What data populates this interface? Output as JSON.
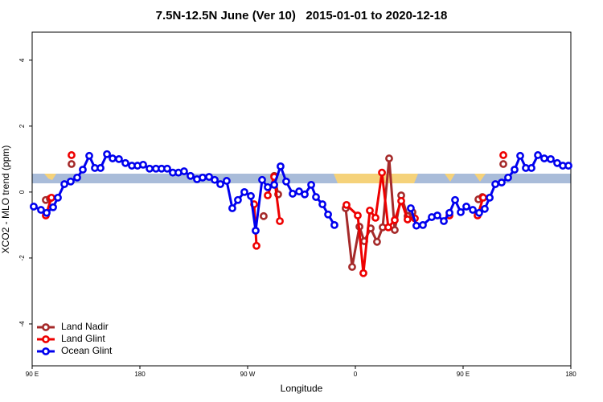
{
  "chart_data": {
    "type": "line",
    "title": "7.5N-12.5N June (Ver 10)   2015-01-01 to 2020-12-18",
    "xlabel": "Longitude",
    "ylabel": "XCO2 - MLO trend (ppm)",
    "xlim": [
      90,
      540
    ],
    "ylim": [
      -5.27,
      4.85
    ],
    "xticks": [
      {
        "value": 90,
        "label": "90 E"
      },
      {
        "value": 180,
        "label": "180"
      },
      {
        "value": 270,
        "label": "90 W"
      },
      {
        "value": 360,
        "label": "0"
      },
      {
        "value": 450,
        "label": "90 E"
      },
      {
        "value": 540,
        "label": "180"
      }
    ],
    "yticks": [
      -4,
      -2,
      0,
      2,
      4
    ],
    "legend": "bottom-left",
    "series": [
      {
        "name": "Land Nadir",
        "color": "#a52a2a",
        "x": [
          101.4,
          104.8,
          null,
          122.9,
          null,
          283.4,
          null,
          292.2,
          295.5,
          null,
          351.9,
          357.3,
          363.4,
          367.4,
          372.8,
          378.1,
          382.8,
          388.2,
          392.9,
          398.3,
          403.6,
          407.7,
          null,
          462.8,
          466.1,
          null,
          483.6
        ],
        "values": [
          -0.24,
          -0.2,
          null,
          0.85,
          null,
          -0.73,
          null,
          0.49,
          -0.07,
          null,
          -0.49,
          -2.27,
          -1.05,
          -1.49,
          -1.1,
          -1.51,
          -1.07,
          1.02,
          -1.15,
          -0.1,
          -0.73,
          -0.61,
          null,
          -0.22,
          -0.15,
          null,
          0.85
        ]
      },
      {
        "name": "Land Glint",
        "color": "#ee0000",
        "x": [
          101.4,
          106.1,
          null,
          122.9,
          null,
          275.4,
          277.4,
          null,
          286.8,
          292.2,
          296.9,
          null,
          352.6,
          362.0,
          366.7,
          372.1,
          376.8,
          382.2,
          387.5,
          392.9,
          398.3,
          403.6,
          409.7,
          null,
          438.6,
          null,
          462.1,
          466.8,
          null,
          483.6
        ],
        "values": [
          -0.71,
          -0.17,
          null,
          1.12,
          null,
          -0.37,
          -1.63,
          null,
          -0.1,
          0.46,
          -0.88,
          null,
          -0.39,
          -0.71,
          -2.46,
          -0.56,
          -0.78,
          0.59,
          -1.07,
          -0.85,
          -0.27,
          -0.83,
          -0.8,
          null,
          -0.71,
          null,
          -0.71,
          -0.17,
          null,
          1.12
        ]
      },
      {
        "name": "Ocean Glint",
        "color": "#0000ee",
        "x": [
          91.3,
          97.4,
          102.1,
          107.5,
          111.5,
          116.9,
          122.2,
          127.6,
          132.3,
          137.7,
          142.4,
          147.1,
          152.5,
          157.2,
          162.5,
          167.9,
          173.3,
          178.0,
          182.7,
          188.1,
          193.4,
          198.1,
          202.8,
          207.5,
          212.2,
          216.9,
          222.3,
          227.7,
          232.4,
          237.8,
          242.5,
          247.2,
          252.5,
          257.2,
          261.9,
          267.3,
          272.7,
          276.7,
          282.1,
          286.8,
          292.2,
          297.5,
          302.2,
          307.6,
          313.0,
          317.7,
          323.1,
          327.1,
          332.5,
          337.2,
          342.5,
          null,
          406.3,
          411.0,
          416.4,
          423.8,
          428.5,
          433.9,
          438.6,
          443.3,
          448.0,
          452.7,
          458.1,
          463.4,
          468.1,
          472.2,
          476.9,
          482.2,
          487.6,
          493.0,
          497.7,
          502.4,
          507.1,
          512.5,
          517.8,
          523.2,
          528.6,
          533.3,
          538.0
        ],
        "values": [
          -0.44,
          -0.54,
          -0.63,
          -0.46,
          -0.17,
          0.24,
          0.32,
          0.44,
          0.68,
          1.1,
          0.73,
          0.73,
          1.15,
          1.02,
          1.0,
          0.88,
          0.8,
          0.8,
          0.83,
          0.71,
          0.71,
          0.71,
          0.71,
          0.59,
          0.59,
          0.63,
          0.49,
          0.39,
          0.44,
          0.46,
          0.37,
          0.24,
          0.34,
          -0.49,
          -0.24,
          0,
          -0.12,
          -1.17,
          0.37,
          0.15,
          0.22,
          0.78,
          0.32,
          -0.05,
          0.02,
          -0.07,
          0.22,
          -0.15,
          -0.37,
          -0.68,
          -1.0,
          null,
          -0.49,
          -1.02,
          -1.0,
          -0.76,
          -0.71,
          -0.88,
          -0.63,
          -0.24,
          -0.61,
          -0.44,
          -0.54,
          -0.63,
          -0.51,
          -0.17,
          0.24,
          0.29,
          0.44,
          0.68,
          1.1,
          0.73,
          0.73,
          1.12,
          1.02,
          1.0,
          0.88,
          0.8,
          0.8
        ]
      }
    ]
  }
}
